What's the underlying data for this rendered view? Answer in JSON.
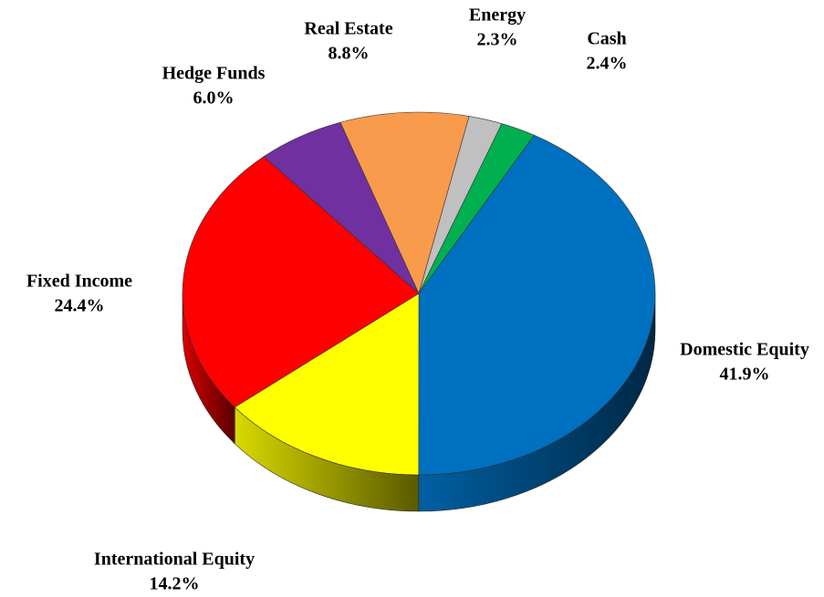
{
  "chart_data": {
    "type": "pie",
    "categories": [
      "Domestic Equity",
      "International Equity",
      "Fixed Income",
      "Hedge Funds",
      "Real Estate",
      "Energy",
      "Cash"
    ],
    "values": [
      41.9,
      14.2,
      24.4,
      6.0,
      8.8,
      2.3,
      2.4
    ],
    "value_labels": [
      "41.9%",
      "14.2%",
      "24.4%",
      "6.0%",
      "8.8%",
      "2.3%",
      "2.4%"
    ],
    "colors": [
      "#0070c0",
      "#ffff00",
      "#ff0000",
      "#7030a0",
      "#f99b4c",
      "#c0c0c0",
      "#00b050"
    ]
  }
}
